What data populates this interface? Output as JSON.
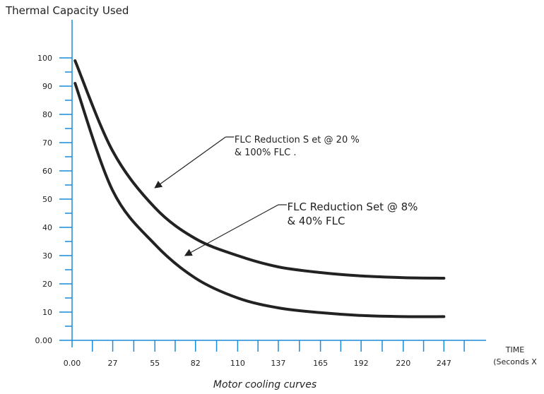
{
  "chart_data": {
    "type": "line",
    "title": "Thermal Capacity Used",
    "xlabel_line1": "TIME",
    "xlabel_line2": "(Seconds X",
    "caption": "Motor cooling curves",
    "xlim": [
      0,
      275
    ],
    "ylim": [
      0,
      100
    ],
    "x_ticks": [
      0,
      27,
      55,
      82,
      110,
      137,
      165,
      192,
      220,
      247
    ],
    "x_tick_labels": [
      "0.00",
      "27",
      "55",
      "82",
      "110",
      "137",
      "165",
      "192",
      "220",
      "247"
    ],
    "y_ticks": [
      0,
      10,
      20,
      30,
      40,
      50,
      60,
      70,
      80,
      90,
      100
    ],
    "y_tick_labels": [
      "0.00",
      "10",
      "20",
      "30",
      "40",
      "50",
      "60",
      "70",
      "80",
      "90",
      "100"
    ],
    "grid": false,
    "series": [
      {
        "x": [
          2,
          27,
          55,
          82,
          110,
          137,
          165,
          192,
          220,
          247
        ],
        "y": [
          99,
          67,
          47,
          36,
          30,
          26,
          24,
          22.8,
          22.2,
          22
        ],
        "color": "#222222"
      },
      {
        "x": [
          2,
          27,
          55,
          82,
          110,
          137,
          165,
          192,
          220,
          247
        ],
        "y": [
          91,
          53,
          34,
          22,
          15,
          11.5,
          9.8,
          8.8,
          8.4,
          8.4
        ],
        "color": "#222222"
      }
    ],
    "annotations": [
      {
        "lines": [
          "FLC  Reduction   S et @ 20  %",
          "&  100% FLC ."
        ],
        "target": [
          55,
          54
        ],
        "elbow": [
          102,
          72
        ],
        "text_anchor": [
          106,
          71
        ]
      },
      {
        "lines": [
          "FLC Reduction Set @ 8%",
          "& 40% FLC"
        ],
        "target": [
          75,
          30
        ],
        "elbow": [
          137,
          48
        ],
        "text_anchor": [
          141,
          47
        ]
      }
    ]
  }
}
